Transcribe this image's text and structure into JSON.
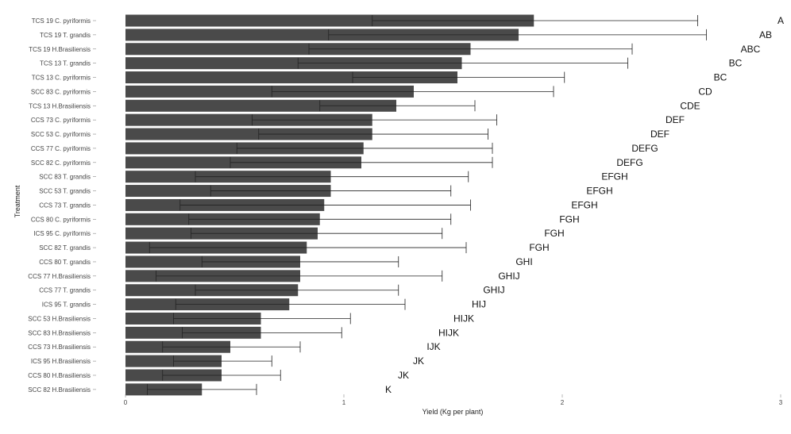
{
  "chart_data": {
    "type": "bar",
    "orientation": "horizontal",
    "xlabel": "Yield (Kg per plant)",
    "ylabel": "Treatment",
    "xlim": [
      0,
      3
    ],
    "xticks": [
      "0",
      "1",
      "2",
      "3"
    ],
    "grid": false,
    "bar_color": "#4a4a4a",
    "errorbar_color": "#222222",
    "categories": [
      "TCS 19 C. pyriformis",
      "TCS 19 T. grandis",
      "TCS 19 H.Brasiliensis",
      "TCS 13 T. grandis",
      "TCS 13 C. pyriformis",
      "SCC 83 C. pyriformis",
      "TCS 13 H.Brasiliensis",
      "CCS 73 C. pyriformis",
      "SCC 53 C. pyriformis",
      "CCS 77 C. pyriformis",
      "SCC 82 C. pyriformis",
      "SCC 83 T. grandis",
      "SCC 53 T. grandis",
      "CCS 73 T. grandis",
      "CCS 80 C. pyriformis",
      "ICS 95 C. pyriformis",
      "SCC 82 T. grandis",
      "CCS 80 T. grandis",
      "CCS 77 H.Brasiliensis",
      "CCS 77 T. grandis",
      "ICS 95 T. grandis",
      "SCC 53 H.Brasiliensis",
      "SCC 83 H.Brasiliensis",
      "CCS 73 H.Brasiliensis",
      "ICS 95 H.Brasiliensis",
      "CCS 80 H.Brasiliensis",
      "SCC 82 H.Brasiliensis"
    ],
    "values": [
      1.87,
      1.8,
      1.58,
      1.54,
      1.52,
      1.32,
      1.24,
      1.13,
      1.13,
      1.09,
      1.08,
      0.94,
      0.94,
      0.91,
      0.89,
      0.88,
      0.83,
      0.8,
      0.8,
      0.79,
      0.75,
      0.62,
      0.62,
      0.48,
      0.44,
      0.44,
      0.35
    ],
    "error_low": [
      1.13,
      0.93,
      0.84,
      0.79,
      1.04,
      0.67,
      0.89,
      0.58,
      0.61,
      0.51,
      0.48,
      0.32,
      0.39,
      0.25,
      0.29,
      0.3,
      0.11,
      0.35,
      0.14,
      0.32,
      0.23,
      0.22,
      0.26,
      0.17,
      0.22,
      0.17,
      0.1
    ],
    "error_high": [
      2.62,
      2.66,
      2.32,
      2.3,
      2.01,
      1.96,
      1.6,
      1.7,
      1.66,
      1.68,
      1.68,
      1.57,
      1.49,
      1.58,
      1.49,
      1.45,
      1.56,
      1.25,
      1.45,
      1.25,
      1.28,
      1.03,
      0.99,
      0.8,
      0.67,
      0.71,
      0.6
    ],
    "group_letters": [
      "A",
      "AB",
      "ABC",
      "BC",
      "BC",
      "CD",
      "CDE",
      "DEF",
      "DEF",
      "DEFG",
      "DEFG",
      "EFGH",
      "EFGH",
      "EFGH",
      "FGH",
      "FGH",
      "FGH",
      "GHI",
      "GHIJ",
      "GHIJ",
      "HIJ",
      "HIJK",
      "HIJK",
      "IJK",
      "JK",
      "JK",
      "K"
    ]
  }
}
